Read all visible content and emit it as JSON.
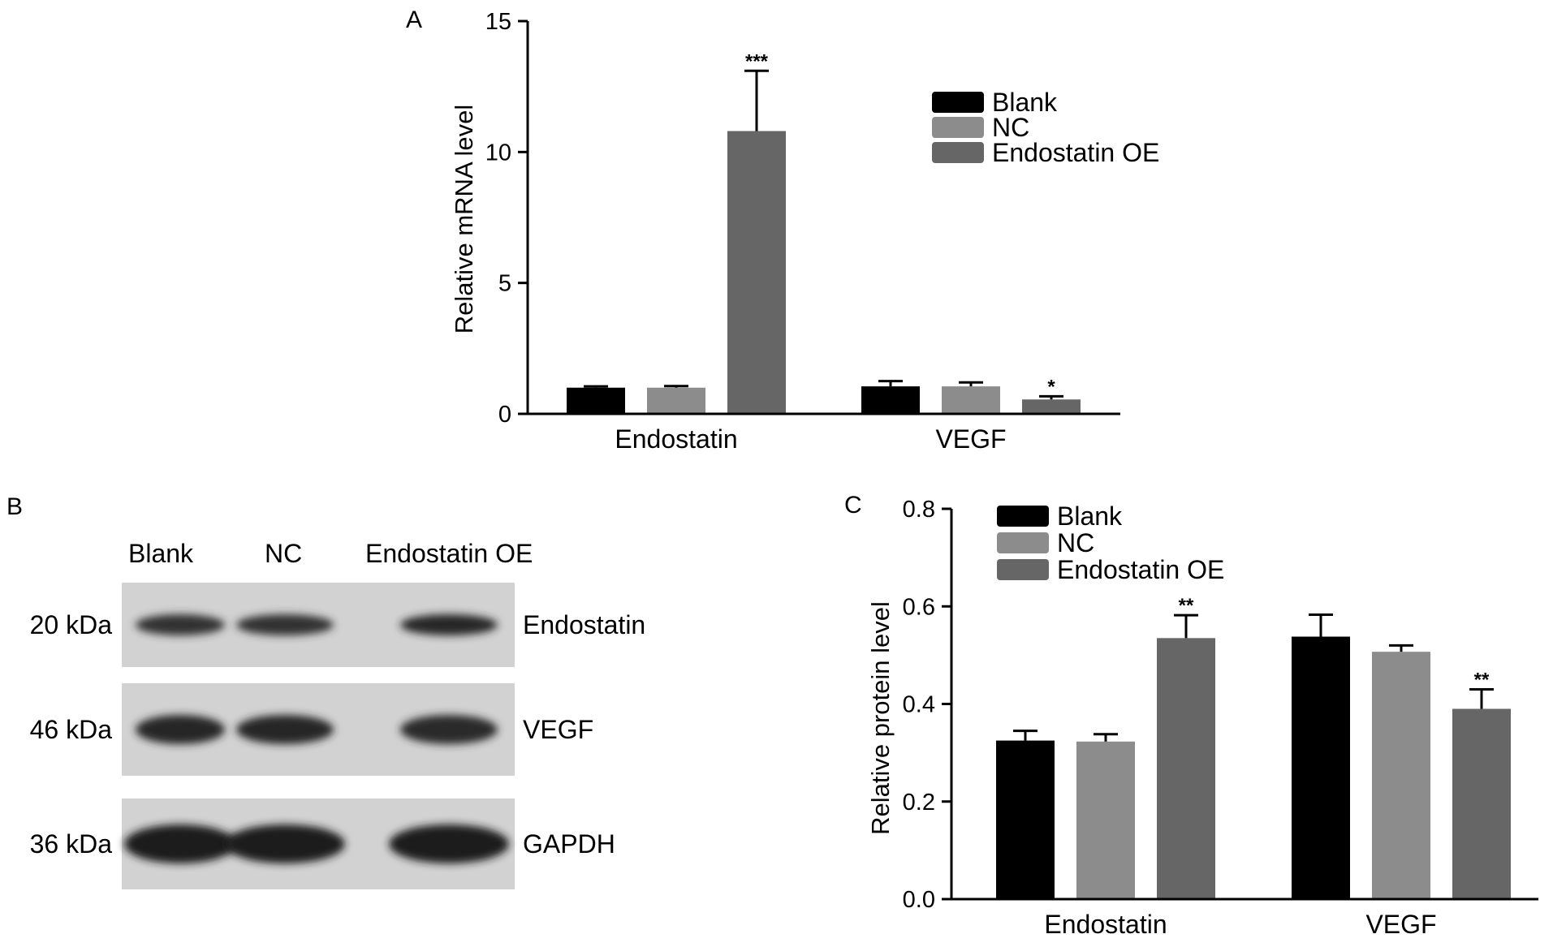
{
  "chart_data": [
    {
      "panel": "A",
      "type": "bar",
      "categories": [
        "Endostatin",
        "VEGF"
      ],
      "series": [
        {
          "name": "Blank",
          "values": [
            1.0,
            1.05
          ],
          "errors": [
            0.05,
            0.2
          ],
          "sig": [
            "",
            ""
          ]
        },
        {
          "name": "NC",
          "values": [
            1.0,
            1.05
          ],
          "errors": [
            0.06,
            0.15
          ],
          "sig": [
            "",
            ""
          ]
        },
        {
          "name": "Endostatin OE",
          "values": [
            10.8,
            0.55
          ],
          "errors": [
            2.3,
            0.12
          ],
          "sig": [
            "***",
            "*"
          ]
        }
      ],
      "xlabel": "",
      "ylabel": "Relative mRNA level",
      "ylim": [
        0,
        15
      ],
      "yticks": [
        "0",
        "5",
        "10",
        "15"
      ],
      "grid": false,
      "legend": "top-right",
      "colors": [
        "#000000",
        "#8c8c8c",
        "#666666"
      ]
    },
    {
      "panel": "C",
      "type": "bar",
      "categories": [
        "Endostatin",
        "VEGF"
      ],
      "series": [
        {
          "name": "Blank",
          "values": [
            0.325,
            0.538
          ],
          "errors": [
            0.02,
            0.045
          ],
          "sig": [
            "",
            ""
          ]
        },
        {
          "name": "NC",
          "values": [
            0.323,
            0.507
          ],
          "errors": [
            0.015,
            0.013
          ],
          "sig": [
            "",
            ""
          ]
        },
        {
          "name": "Endostatin OE",
          "values": [
            0.535,
            0.39
          ],
          "errors": [
            0.047,
            0.04
          ],
          "sig": [
            "**",
            "**"
          ]
        }
      ],
      "xlabel": "",
      "ylabel": "Relative protein level",
      "ylim": [
        0,
        0.8
      ],
      "yticks": [
        "0.0",
        "0.2",
        "0.4",
        "0.6",
        "0.8"
      ],
      "grid": false,
      "legend": "top-left",
      "colors": [
        "#000000",
        "#8c8c8c",
        "#666666"
      ]
    }
  ],
  "western_blot": {
    "panel": "B",
    "lanes": [
      "Blank",
      "NC",
      "Endostatin OE"
    ],
    "rows": [
      {
        "mw": "20 kDa",
        "protein": "Endostatin",
        "intensity": [
          0.75,
          0.7,
          0.9
        ]
      },
      {
        "mw": "46 kDa",
        "protein": "VEGF",
        "intensity": [
          0.9,
          0.88,
          0.85
        ]
      },
      {
        "mw": "36 kDa",
        "protein": "GAPDH",
        "intensity": [
          1.0,
          1.0,
          1.0
        ]
      }
    ]
  }
}
